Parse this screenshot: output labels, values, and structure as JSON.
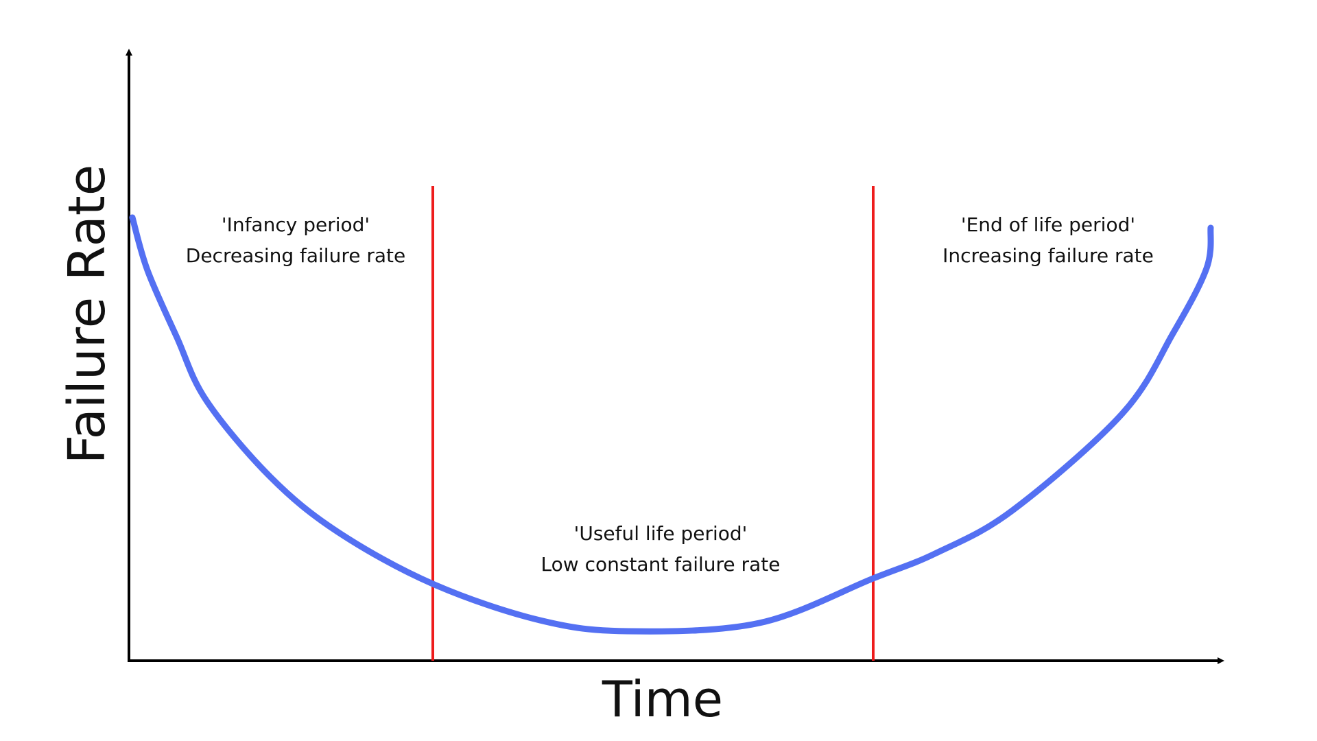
{
  "axes": {
    "y_label": "Failure Rate",
    "x_label": "Time"
  },
  "periods": [
    {
      "name": "'Infancy period'",
      "description": "Decreasing failure rate"
    },
    {
      "name": "'Useful life period'",
      "description": "Low constant failure rate"
    },
    {
      "name": "'End of life period'",
      "description": "Increasing failure rate"
    }
  ]
}
